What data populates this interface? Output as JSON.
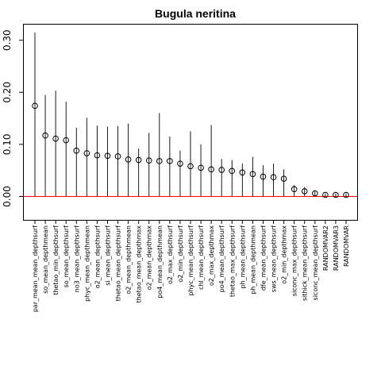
{
  "chart_data": {
    "type": "scatter",
    "title": "Bugula neritina",
    "xlabel": "",
    "ylabel": "",
    "ylim": [
      -0.045,
      0.33
    ],
    "yticks": [
      0.0,
      0.1,
      0.2,
      0.3
    ],
    "ytick_labels": [
      "0.00",
      "0.10",
      "0.20",
      "0.30"
    ],
    "grid": false,
    "legend": "none",
    "baseline": 0.0,
    "colors": {
      "points": "#000000",
      "intervals": "#000000",
      "baseline": "#ff0000",
      "frame": "#000000"
    },
    "categories": [
      "par_mean_mean_depthsurf",
      "so_mean_depthmean",
      "thetao_min_depthsurf",
      "so_mean_depthsurf",
      "no3_mean_depthsurf",
      "phyc_mean_depthmean",
      "o2_mean_depthsurf",
      "si_mean_depthsurf",
      "thetao_mean_depthsurf",
      "o2_mean_depthmean",
      "thetao_mean_depthmax",
      "o2_mean_depthmax",
      "po4_mean_depthmean",
      "o2_max_depthsurf",
      "o2_min_depthsurf",
      "phyc_mean_depthsurf",
      "chl_mean_depthsurf",
      "o2_max_depthmax",
      "po4_mean_depthsurf",
      "thetao_max_depthsurf",
      "ph_mean_depthsurf",
      "ph_mean_depthmean",
      "dfe_mean_depthsurf",
      "sws_mean_depthsurf",
      "o2_min_depthmax",
      "siconc_max_depthsurf",
      "sithick_mean_depthsurf",
      "siconc_mean_depthsurf",
      "RANDOMVAR2",
      "RANDOMVAR3",
      "RANDOMVAR"
    ],
    "series": [
      {
        "values": [
          0.174,
          0.117,
          0.111,
          0.108,
          0.088,
          0.083,
          0.079,
          0.078,
          0.077,
          0.071,
          0.07,
          0.069,
          0.068,
          0.068,
          0.063,
          0.058,
          0.055,
          0.052,
          0.051,
          0.049,
          0.046,
          0.043,
          0.038,
          0.037,
          0.034,
          0.014,
          0.01,
          0.006,
          0.003,
          0.003,
          0.003
        ]
      }
    ],
    "upper": [
      0.315,
      0.195,
      0.203,
      0.182,
      0.132,
      0.151,
      0.136,
      0.134,
      0.135,
      0.14,
      0.092,
      0.122,
      0.16,
      0.115,
      0.088,
      0.125,
      0.1,
      0.137,
      0.072,
      0.07,
      0.063,
      0.076,
      0.06,
      0.063,
      0.052,
      0.022,
      0.018,
      0.01,
      0.006,
      0.006,
      0.006
    ]
  }
}
